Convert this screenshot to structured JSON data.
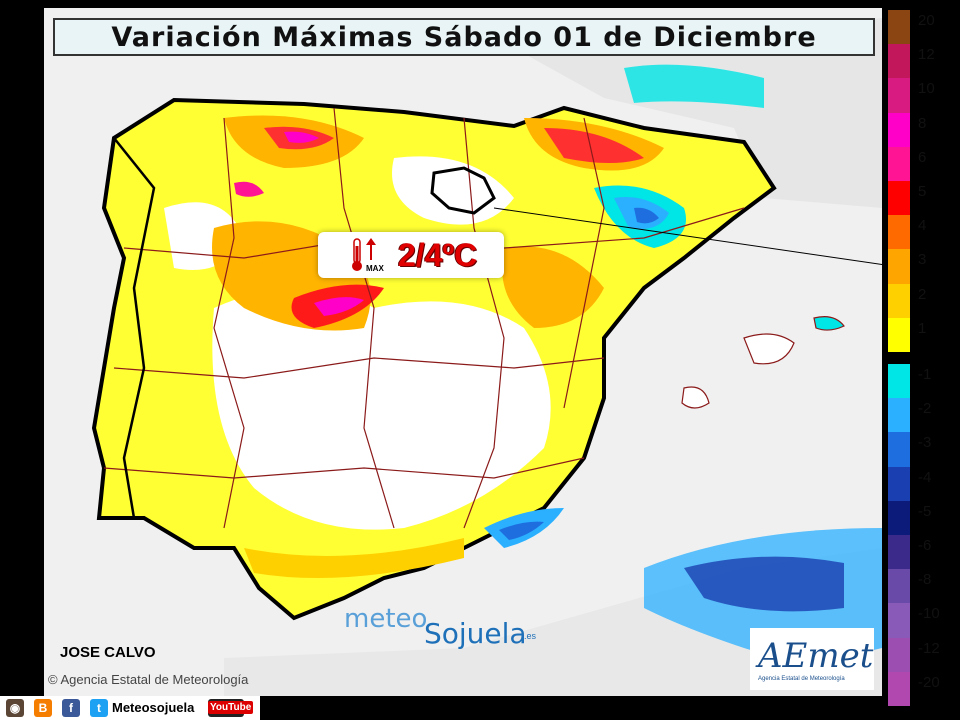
{
  "title": "Variación Máximas Sábado 01 de Diciembre",
  "callout": {
    "value": "2/4ºC",
    "label": "MAX"
  },
  "author": "JOSE CALVO",
  "agency": "Agencia Estatal de Meteorología",
  "brand": {
    "part1": "meteo",
    "part2": "Sojuela",
    "suffix": ".es"
  },
  "aemet": {
    "logo": "AEmet",
    "subtitle": "Agencia Estatal de Meteorología"
  },
  "legend": {
    "labels": [
      "20",
      "12",
      "10",
      "8",
      "6",
      "5",
      "4",
      "3",
      "2",
      "1",
      "-1",
      "-2",
      "-3",
      "-4",
      "-5",
      "-6",
      "-8",
      "-10",
      "-12",
      "-20"
    ],
    "positive_colors": [
      "#8b4513",
      "#c2185b",
      "#d81b80",
      "#ff00c8",
      "#ff1493",
      "#ff0000",
      "#ff6a00",
      "#ffa500",
      "#ffd000",
      "#ffff00"
    ],
    "negative_colors": [
      "#00e5e5",
      "#2ab0ff",
      "#1e6ee0",
      "#1a3fb0",
      "#0c1a7a",
      "#3b2a8a",
      "#6a4aa8",
      "#8a5ab8",
      "#9c4fb0",
      "#b048b0"
    ]
  },
  "social": {
    "name": "Meteosojuela",
    "icons": [
      "instagram-icon",
      "blogger-icon",
      "facebook-icon",
      "twitter-icon",
      "youtube-icon"
    ],
    "youtube_label": "YouTube"
  }
}
